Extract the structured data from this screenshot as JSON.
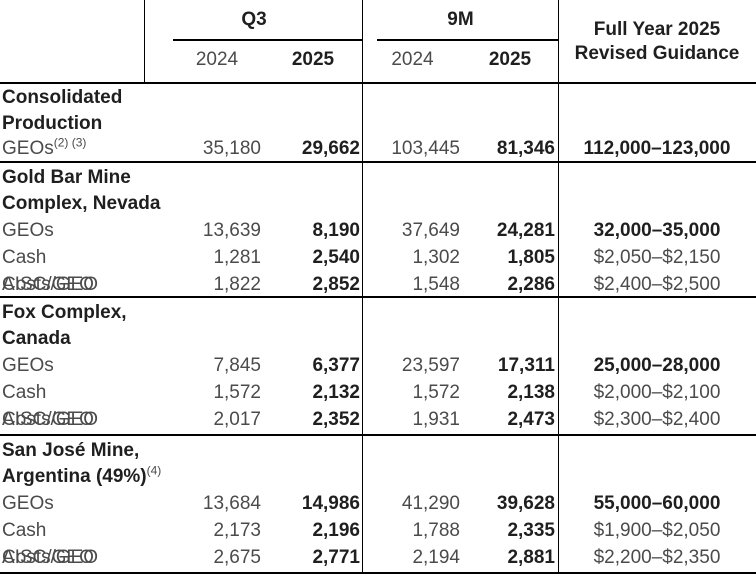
{
  "header": {
    "q3": "Q3",
    "nine_m": "9M",
    "full_year_line1": "Full Year 2025",
    "full_year_line2": "Revised Guidance",
    "year_q3_2024": "2024",
    "year_q3_2025": "2025",
    "year_9m_2024": "2024",
    "year_9m_2025": "2025"
  },
  "colors": {
    "text_regular": "#4b4b4b",
    "text_bold": "#1f1f1f",
    "border": "#000000",
    "background": "#ffffff"
  },
  "sections": [
    {
      "title_lines": [
        "Consolidated",
        "Production"
      ],
      "title_sup": "",
      "rows": [
        {
          "label": "GEOs",
          "label_sup": "(2) (3)",
          "q3_2024": "35,180",
          "q3_2025": "29,662",
          "nm_2024": "103,445",
          "nm_2025": "81,346",
          "guidance": "112,000–123,000"
        }
      ]
    },
    {
      "title_lines": [
        "Gold Bar Mine",
        "Complex, Nevada"
      ],
      "title_sup": "",
      "rows": [
        {
          "label": "GEOs",
          "label_sup": "",
          "q3_2024": "13,639",
          "q3_2025": "8,190",
          "nm_2024": "37,649",
          "nm_2025": "24,281",
          "guidance": "32,000–35,000"
        },
        {
          "label": "Cash Costs/GEO",
          "label_sup": "",
          "q3_2024": "1,281",
          "q3_2025": "2,540",
          "nm_2024": "1,302",
          "nm_2025": "1,805",
          "guidance": "$2,050–$2,150"
        },
        {
          "label": "AISC/GEO",
          "label_sup": "",
          "q3_2024": "1,822",
          "q3_2025": "2,852",
          "nm_2024": "1,548",
          "nm_2025": "2,286",
          "guidance": "$2,400–$2,500"
        }
      ]
    },
    {
      "title_lines": [
        "Fox Complex,",
        "Canada"
      ],
      "title_sup": "",
      "rows": [
        {
          "label": "GEOs",
          "label_sup": "",
          "q3_2024": "7,845",
          "q3_2025": "6,377",
          "nm_2024": "23,597",
          "nm_2025": "17,311",
          "guidance": "25,000–28,000"
        },
        {
          "label": "Cash Costs/GEO",
          "label_sup": "",
          "q3_2024": "1,572",
          "q3_2025": "2,132",
          "nm_2024": "1,572",
          "nm_2025": "2,138",
          "guidance": "$2,000–$2,100"
        },
        {
          "label": "AISC/GEO",
          "label_sup": "",
          "q3_2024": "2,017",
          "q3_2025": "2,352",
          "nm_2024": "1,931",
          "nm_2025": "2,473",
          "guidance": "$2,300–$2,400"
        }
      ]
    },
    {
      "title_lines": [
        "San José Mine,",
        "Argentina (49%)"
      ],
      "title_sup": "(4)",
      "rows": [
        {
          "label": "GEOs",
          "label_sup": "",
          "q3_2024": "13,684",
          "q3_2025": "14,986",
          "nm_2024": "41,290",
          "nm_2025": "39,628",
          "guidance": "55,000–60,000"
        },
        {
          "label": "Cash Costs/GEO",
          "label_sup": "",
          "q3_2024": "2,173",
          "q3_2025": "2,196",
          "nm_2024": "1,788",
          "nm_2025": "2,335",
          "guidance": "$1,900–$2,050"
        },
        {
          "label": "AISC/GEO",
          "label_sup": "",
          "q3_2024": "2,675",
          "q3_2025": "2,771",
          "nm_2024": "2,194",
          "nm_2025": "2,881",
          "guidance": "$2,200–$2,350"
        }
      ]
    }
  ]
}
